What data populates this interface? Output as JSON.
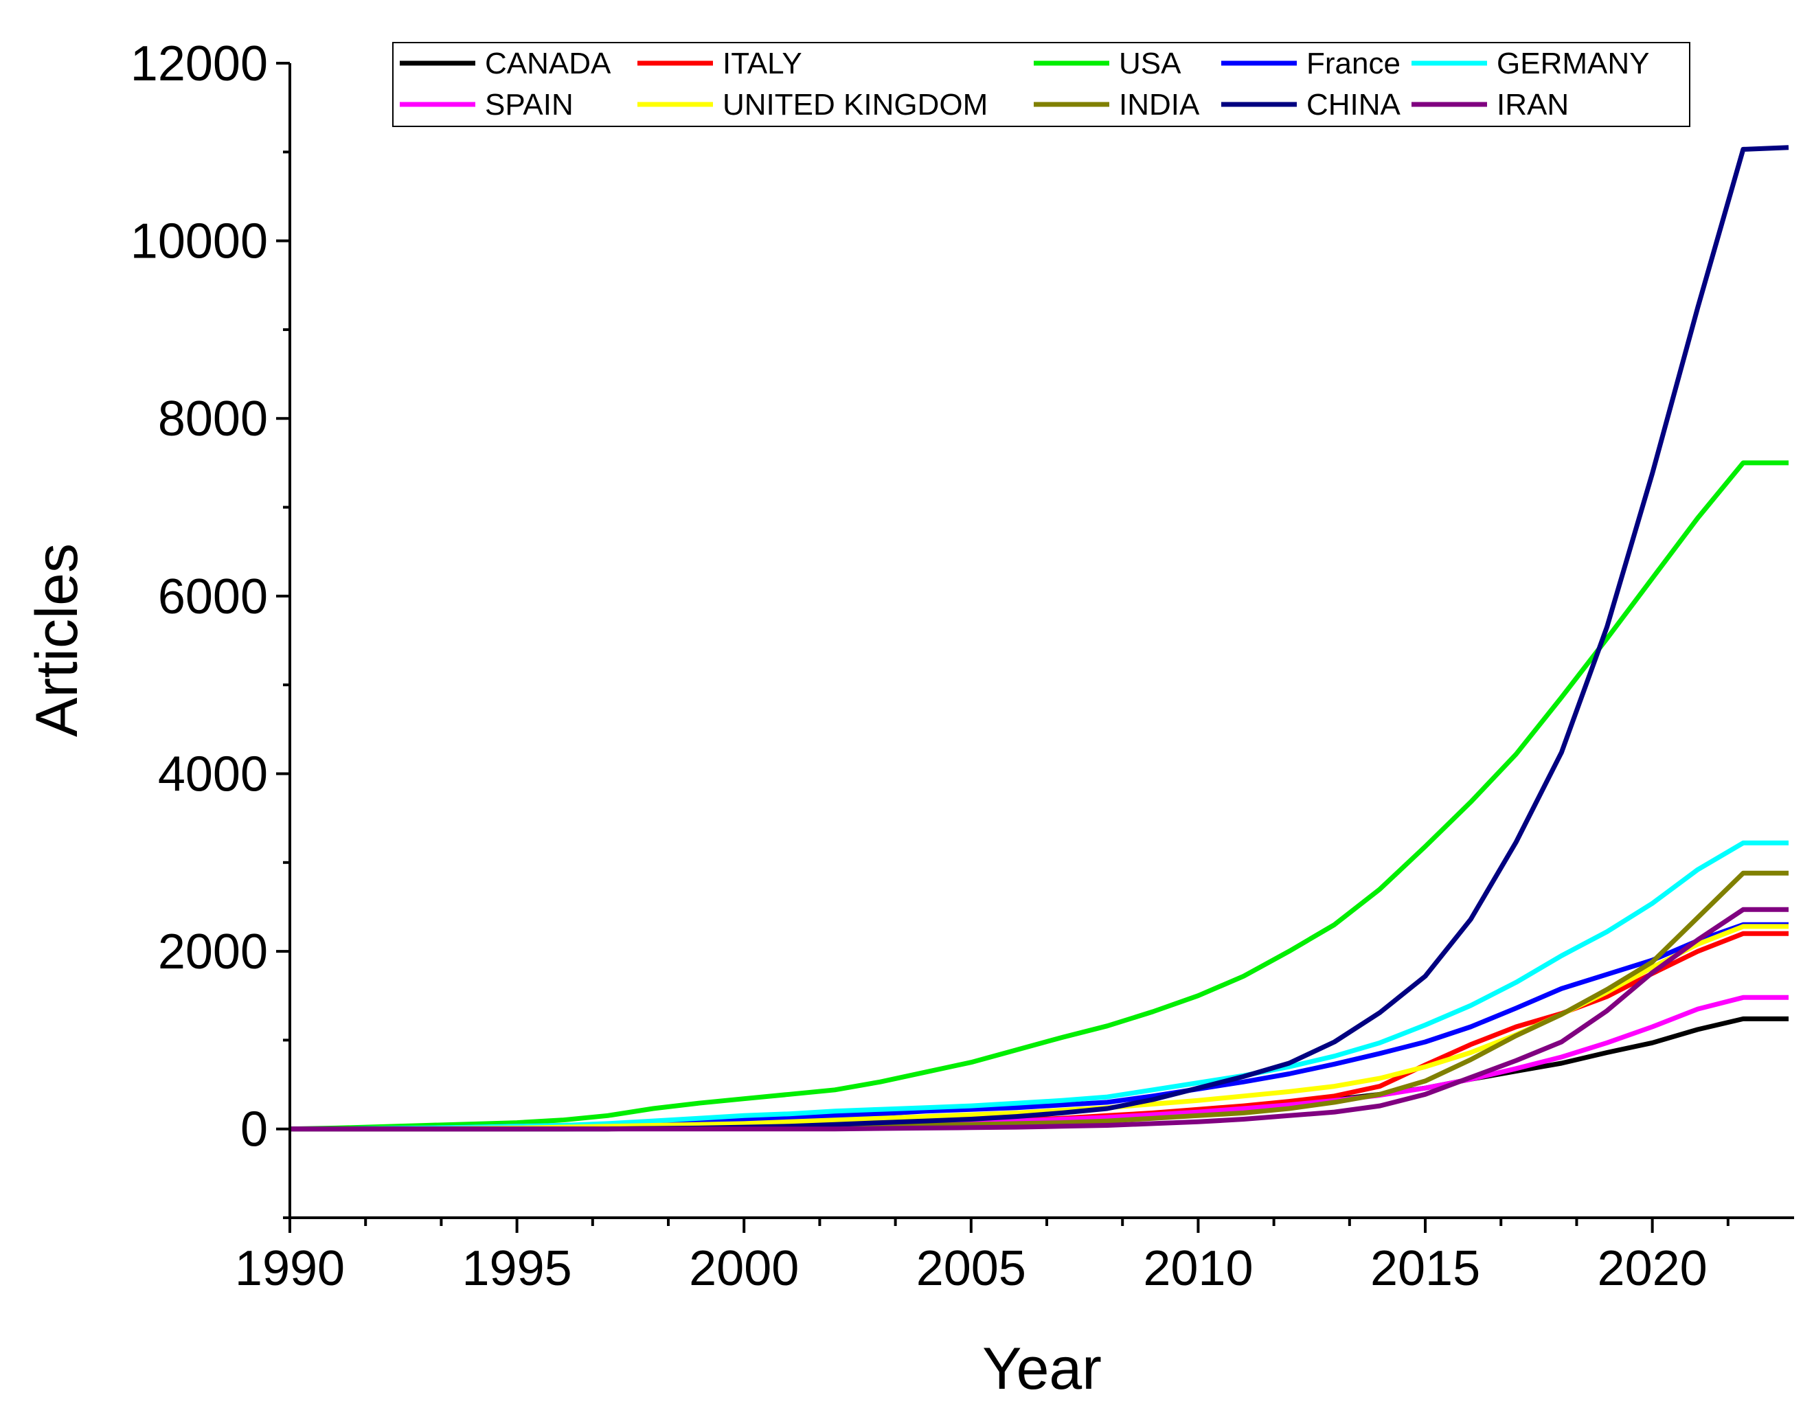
{
  "chart_data": {
    "type": "line",
    "title": "",
    "xlabel": "Year",
    "ylabel": "Articles",
    "xlim": [
      1990,
      2023
    ],
    "ylim": [
      -1000,
      12000
    ],
    "xticks": [
      1990,
      1995,
      2000,
      2005,
      2010,
      2015,
      2020
    ],
    "yticks": [
      0,
      2000,
      4000,
      6000,
      8000,
      10000,
      12000
    ],
    "grid": false,
    "legend_position": "top",
    "x": [
      1990,
      1991,
      1992,
      1993,
      1994,
      1995,
      1996,
      1997,
      1998,
      1999,
      2000,
      2001,
      2002,
      2003,
      2004,
      2005,
      2006,
      2007,
      2008,
      2009,
      2010,
      2011,
      2012,
      2013,
      2014,
      2015,
      2016,
      2017,
      2018,
      2019,
      2020,
      2021,
      2022,
      2023
    ],
    "series": [
      {
        "name": "CANADA",
        "color": "#000000",
        "values": [
          0,
          0,
          0,
          0,
          0,
          0,
          0,
          5,
          10,
          15,
          20,
          25,
          30,
          40,
          50,
          60,
          80,
          100,
          130,
          160,
          200,
          240,
          280,
          330,
          390,
          460,
          560,
          650,
          740,
          860,
          970,
          1120,
          1240,
          1240
        ]
      },
      {
        "name": "ITALY",
        "color": "#ff0000",
        "values": [
          0,
          0,
          0,
          0,
          0,
          0,
          5,
          10,
          15,
          20,
          30,
          40,
          50,
          60,
          70,
          80,
          100,
          120,
          150,
          180,
          220,
          260,
          310,
          370,
          480,
          720,
          950,
          1150,
          1300,
          1490,
          1750,
          2000,
          2200,
          2200
        ]
      },
      {
        "name": "USA",
        "color": "#00ee00",
        "values": [
          0,
          10,
          25,
          40,
          55,
          70,
          100,
          150,
          230,
          290,
          340,
          390,
          440,
          530,
          640,
          750,
          890,
          1030,
          1160,
          1320,
          1500,
          1720,
          2000,
          2300,
          2700,
          3180,
          3680,
          4220,
          4860,
          5520,
          6200,
          6880,
          7500,
          7500
        ]
      },
      {
        "name": "France",
        "color": "#0000ff",
        "values": [
          0,
          0,
          5,
          10,
          20,
          30,
          40,
          50,
          70,
          90,
          110,
          130,
          150,
          170,
          200,
          220,
          240,
          270,
          300,
          370,
          450,
          530,
          620,
          730,
          850,
          980,
          1150,
          1360,
          1580,
          1740,
          1900,
          2120,
          2300,
          2300
        ]
      },
      {
        "name": "GERMANY",
        "color": "#00ffff",
        "values": [
          0,
          0,
          5,
          10,
          20,
          30,
          40,
          60,
          90,
          120,
          150,
          170,
          200,
          220,
          240,
          260,
          290,
          320,
          360,
          440,
          520,
          600,
          700,
          820,
          970,
          1170,
          1390,
          1650,
          1950,
          2220,
          2540,
          2920,
          3220,
          3220
        ]
      },
      {
        "name": "SPAIN",
        "color": "#ff00ff",
        "values": [
          0,
          0,
          0,
          0,
          0,
          0,
          5,
          10,
          15,
          20,
          25,
          30,
          40,
          50,
          60,
          70,
          90,
          110,
          130,
          160,
          190,
          230,
          270,
          320,
          380,
          460,
          560,
          680,
          810,
          970,
          1150,
          1350,
          1480,
          1480
        ]
      },
      {
        "name": "UNITED KINGDOM",
        "color": "#ffff00",
        "values": [
          0,
          0,
          0,
          0,
          5,
          10,
          20,
          30,
          40,
          50,
          60,
          80,
          100,
          120,
          140,
          160,
          180,
          210,
          240,
          280,
          320,
          370,
          420,
          480,
          570,
          700,
          860,
          1060,
          1290,
          1540,
          1820,
          2080,
          2280,
          2280
        ]
      },
      {
        "name": "INDIA",
        "color": "#808000",
        "values": [
          0,
          0,
          0,
          0,
          0,
          0,
          0,
          0,
          5,
          5,
          10,
          15,
          20,
          30,
          40,
          50,
          60,
          70,
          90,
          120,
          150,
          180,
          230,
          300,
          390,
          540,
          780,
          1050,
          1290,
          1570,
          1880,
          2380,
          2880,
          2880
        ]
      },
      {
        "name": "CHINA",
        "color": "#000080",
        "values": [
          0,
          0,
          0,
          0,
          0,
          0,
          0,
          0,
          5,
          10,
          20,
          30,
          50,
          70,
          90,
          110,
          140,
          180,
          230,
          330,
          460,
          590,
          740,
          980,
          1310,
          1720,
          2360,
          3230,
          4240,
          5650,
          7380,
          9250,
          11030,
          11050
        ]
      },
      {
        "name": "IRAN",
        "color": "#800080",
        "values": [
          0,
          0,
          0,
          0,
          0,
          0,
          0,
          0,
          0,
          0,
          0,
          0,
          0,
          5,
          10,
          15,
          20,
          30,
          40,
          60,
          80,
          110,
          150,
          190,
          260,
          390,
          580,
          770,
          980,
          1330,
          1760,
          2130,
          2470,
          2470
        ]
      }
    ]
  }
}
